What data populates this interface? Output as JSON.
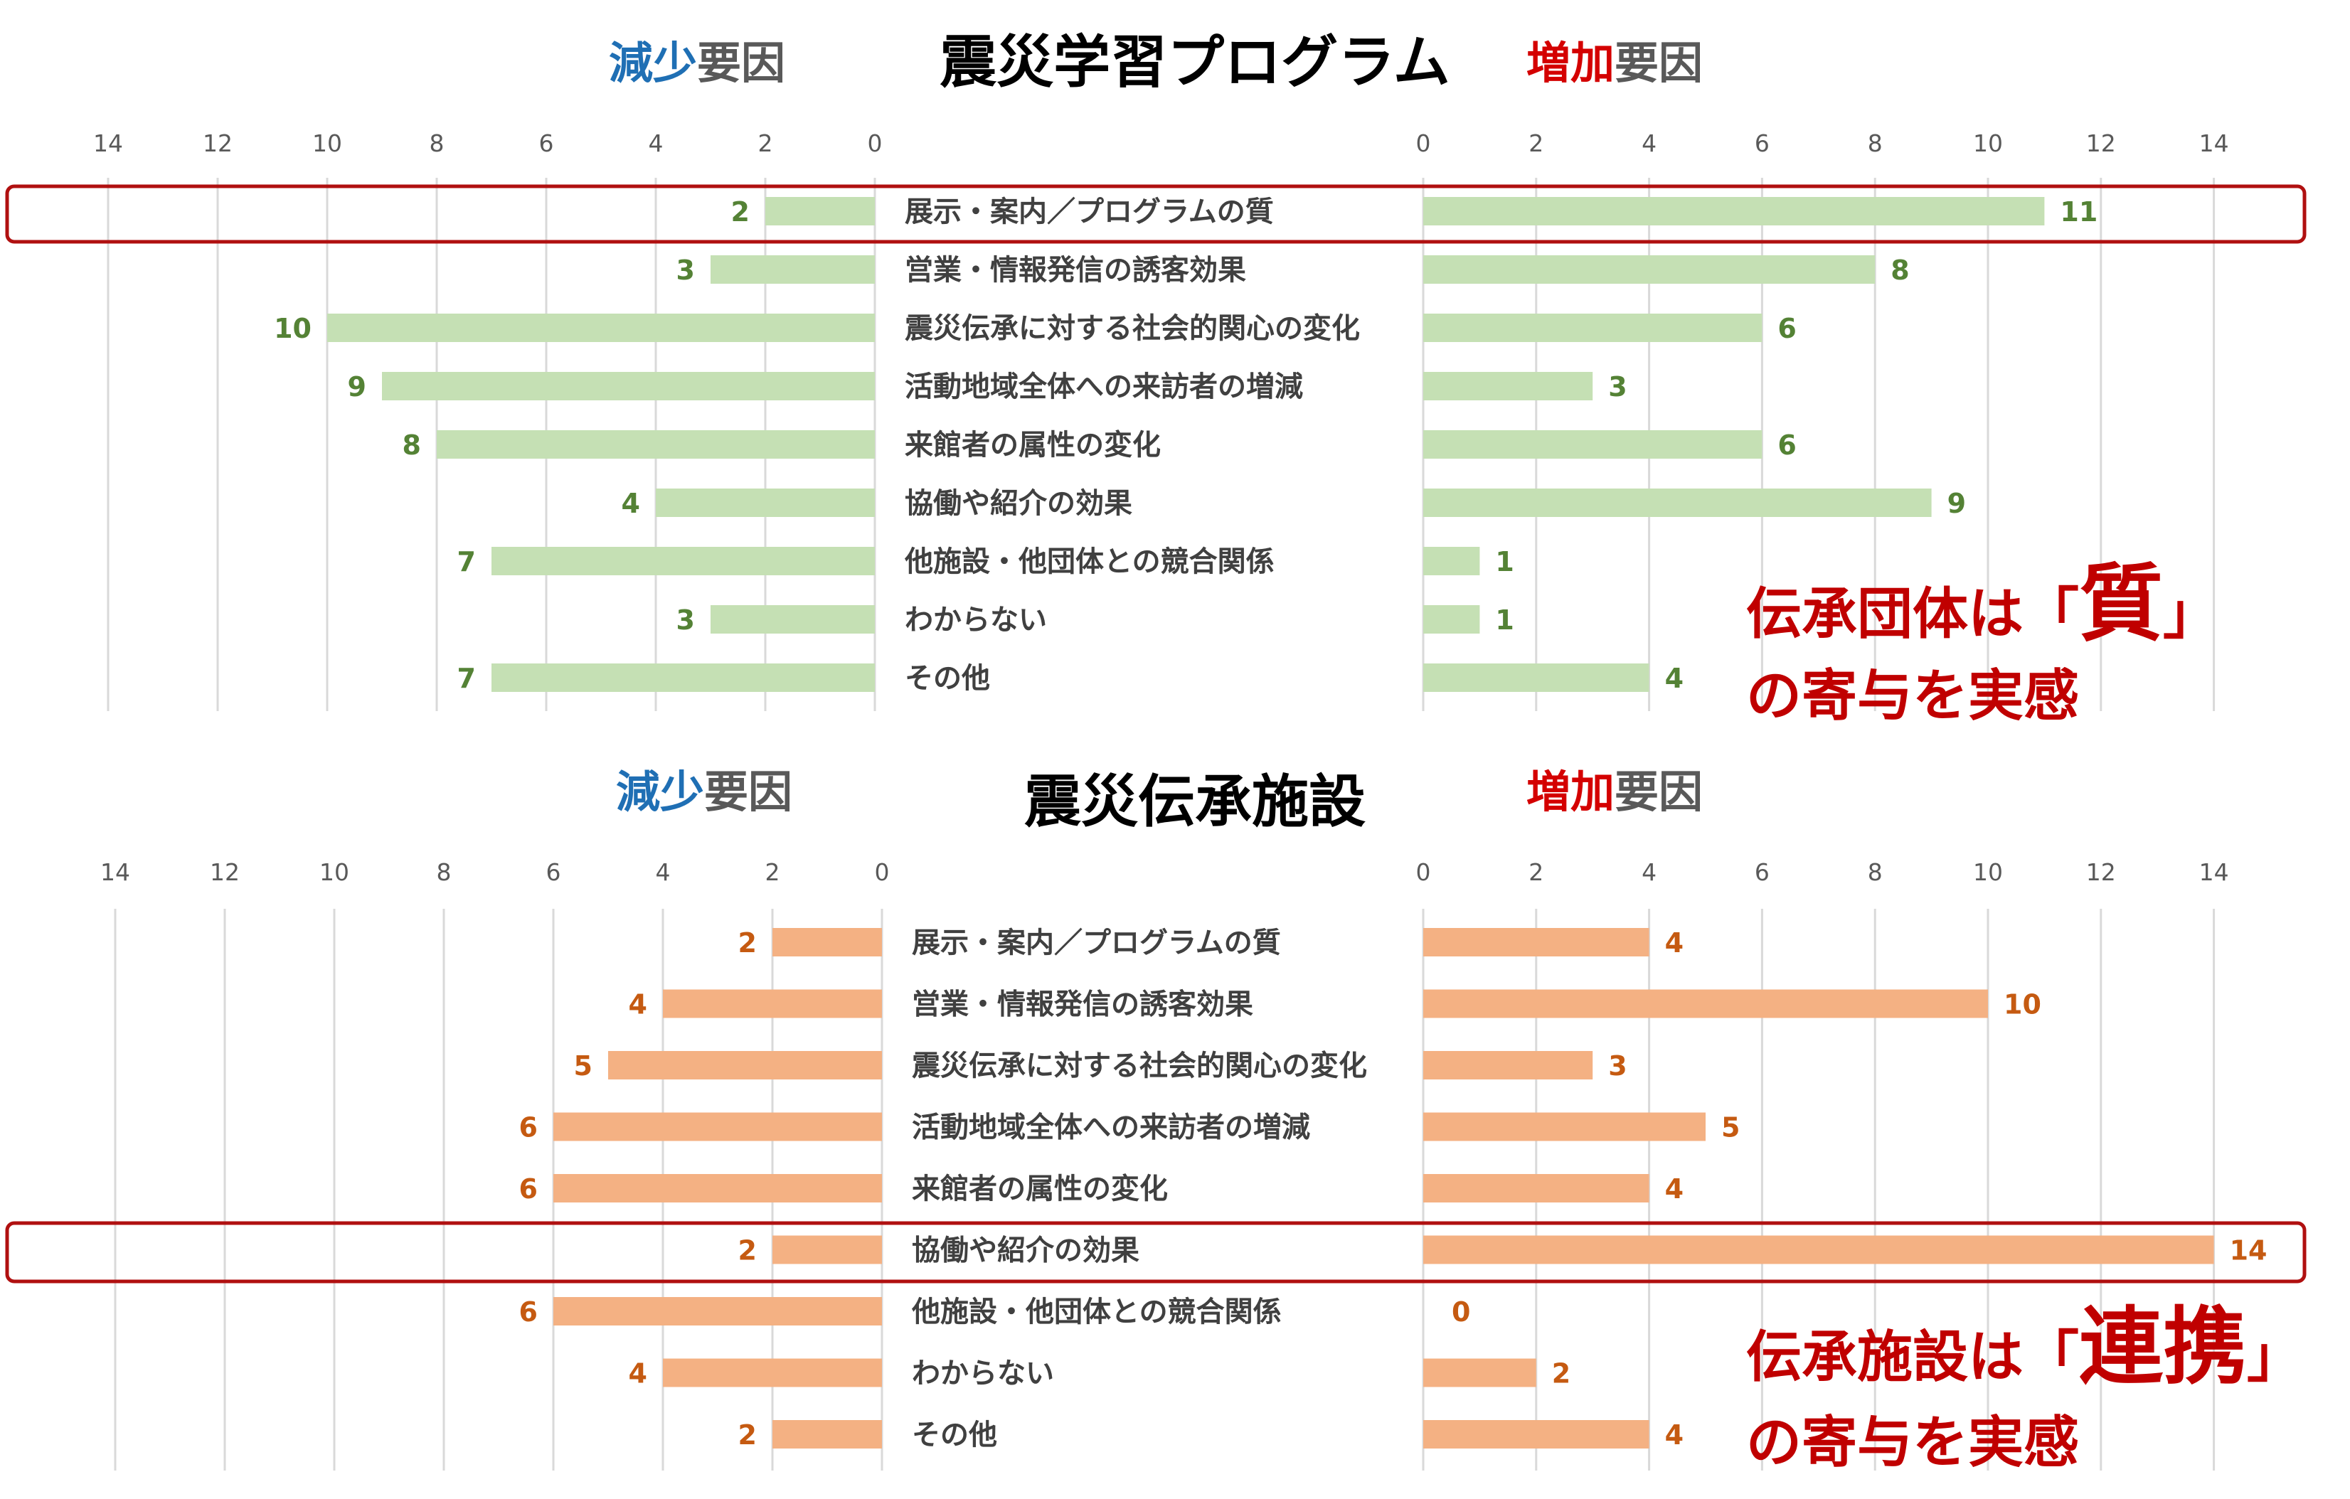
{
  "colors": {
    "decrease": "#1f6fb4",
    "increase": "#d40000",
    "annotation": "#c00000",
    "highlight": "#b01010"
  },
  "chart_data": [
    {
      "type": "bar",
      "orientation": "horizontal-diverging",
      "title": "震災学習プログラム",
      "decrease_header": {
        "accent": "減少",
        "rest": "要因"
      },
      "increase_header": {
        "accent": "増加",
        "rest": "要因"
      },
      "xlim": [
        0,
        14
      ],
      "ticks": [
        0,
        2,
        4,
        6,
        8,
        10,
        12,
        14
      ],
      "grid": true,
      "bar_color": "#c5e0b4",
      "label_color": "#548235",
      "categories": [
        "展示・案内／プログラムの質",
        "営業・情報発信の誘客効果",
        "震災伝承に対する社会的関心の変化",
        "活動地域全体への来訪者の増減",
        "来館者の属性の変化",
        "協働や紹介の効果",
        "他施設・他団体との競合関係",
        "わからない",
        "その他"
      ],
      "series": [
        {
          "name": "減少要因",
          "values": [
            2,
            3,
            10,
            9,
            8,
            4,
            7,
            3,
            7
          ]
        },
        {
          "name": "増加要因",
          "values": [
            11,
            8,
            6,
            3,
            6,
            9,
            1,
            1,
            4
          ]
        }
      ],
      "highlight_category": "展示・案内／プログラムの質",
      "annotation": {
        "line1_pre": "伝承団体は「",
        "keyword": "質",
        "line1_post": "」",
        "line2": "の寄与を実感"
      }
    },
    {
      "type": "bar",
      "orientation": "horizontal-diverging",
      "title": "震災伝承施設",
      "decrease_header": {
        "accent": "減少",
        "rest": "要因"
      },
      "increase_header": {
        "accent": "増加",
        "rest": "要因"
      },
      "xlim": [
        0,
        14
      ],
      "ticks": [
        0,
        2,
        4,
        6,
        8,
        10,
        12,
        14
      ],
      "grid": true,
      "bar_color": "#f4b183",
      "label_color": "#c55a11",
      "categories": [
        "展示・案内／プログラムの質",
        "営業・情報発信の誘客効果",
        "震災伝承に対する社会的関心の変化",
        "活動地域全体への来訪者の増減",
        "来館者の属性の変化",
        "協働や紹介の効果",
        "他施設・他団体との競合関係",
        "わからない",
        "その他"
      ],
      "series": [
        {
          "name": "減少要因",
          "values": [
            2,
            4,
            5,
            6,
            6,
            2,
            6,
            4,
            2
          ]
        },
        {
          "name": "増加要因",
          "values": [
            4,
            10,
            3,
            5,
            4,
            14,
            0,
            2,
            4
          ]
        }
      ],
      "highlight_category": "協働や紹介の効果",
      "annotation": {
        "line1_pre": "伝承施設は「",
        "keyword": "連携",
        "line1_post": "」",
        "line2": "の寄与を実感"
      }
    }
  ]
}
